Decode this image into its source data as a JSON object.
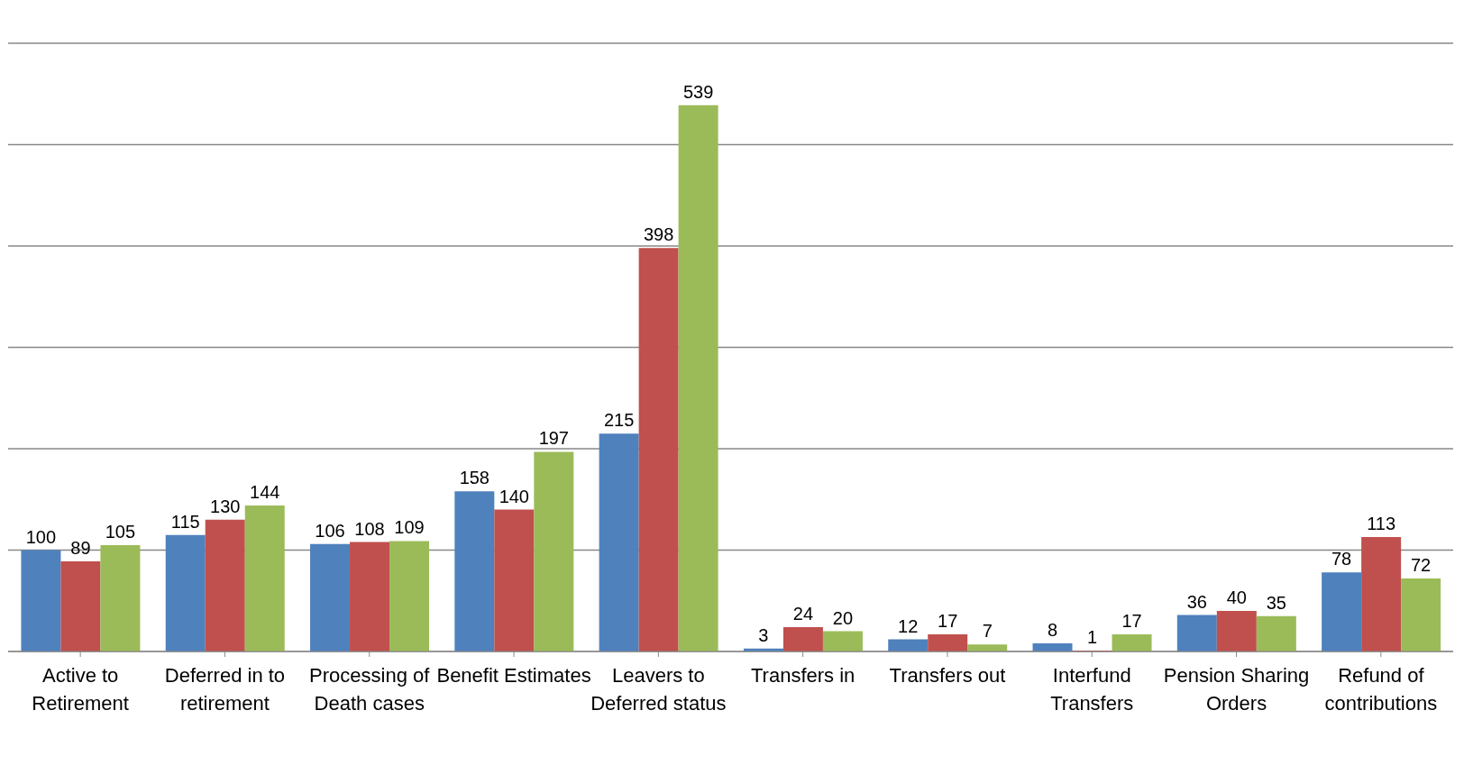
{
  "chart_data": {
    "type": "bar",
    "categories": [
      "Active to Retirement",
      "Deferred in to retirement",
      "Processing of Death cases",
      "Benefit Estimates",
      "Leavers to Deferred status",
      "Transfers in",
      "Transfers out",
      "Interfund Transfers",
      "Pension Sharing Orders",
      "Refund of contributions"
    ],
    "series": [
      {
        "color": "#4f81bd",
        "values": [
          100,
          115,
          106,
          158,
          215,
          3,
          12,
          8,
          36,
          78
        ]
      },
      {
        "color": "#c0504d",
        "values": [
          89,
          130,
          108,
          140,
          398,
          24,
          17,
          1,
          40,
          113
        ]
      },
      {
        "color": "#9bbb59",
        "values": [
          105,
          144,
          109,
          197,
          539,
          20,
          7,
          17,
          35,
          72
        ]
      }
    ],
    "ylim": [
      0,
      600
    ],
    "grid": "y",
    "data_labels": true,
    "tick_labels": "x",
    "legend": false
  }
}
